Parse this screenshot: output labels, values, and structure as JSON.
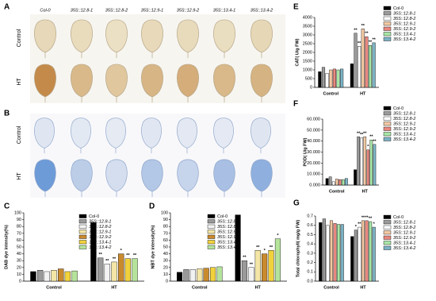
{
  "panels": {
    "A": {
      "label": "A",
      "columns": [
        "Col-0",
        "35S::12.8-1",
        "35S::12.8-2",
        "35S::12.9-1",
        "35S::12.9-2",
        "35S::13.4-1",
        "35S::13.4-2"
      ],
      "rows": [
        "Control",
        "HT"
      ]
    },
    "B": {
      "label": "B",
      "rows": [
        "Control",
        "HT"
      ]
    }
  },
  "chart_data": [
    {
      "type": "bar",
      "label": "C",
      "ylabel": "DAB dye intensity(%)",
      "categories": [
        "Control",
        "HT"
      ],
      "legend": "upper right",
      "ylim": [
        0,
        100
      ],
      "yticks": [
        0,
        10,
        20,
        30,
        40,
        50,
        60,
        70,
        80,
        90,
        100
      ],
      "series": [
        {
          "name": "Col-0",
          "color": "#000000",
          "values": [
            14,
            86
          ],
          "marks": [
            null,
            null
          ]
        },
        {
          "name": "35S::12.8-1",
          "color": "#9a9a9a",
          "values": [
            16,
            34
          ],
          "marks": [
            null,
            "**"
          ]
        },
        {
          "name": "35S::12.8-2",
          "color": "#f2f2f2",
          "values": [
            14,
            25
          ],
          "marks": [
            null,
            "**"
          ]
        },
        {
          "name": "35S::12.9-1",
          "color": "#f3e6a6",
          "values": [
            16,
            28
          ],
          "marks": [
            null,
            "**"
          ]
        },
        {
          "name": "35S::12.9-2",
          "color": "#c98a2e",
          "values": [
            18,
            40
          ],
          "marks": [
            null,
            "*"
          ]
        },
        {
          "name": "35S::13.4-1",
          "color": "#f2d23c",
          "values": [
            14,
            33
          ],
          "marks": [
            null,
            "**"
          ]
        },
        {
          "name": "35S::13.4-2",
          "color": "#b5e39b",
          "values": [
            15,
            33
          ],
          "marks": [
            null,
            "**"
          ]
        }
      ]
    },
    {
      "type": "bar",
      "label": "D",
      "ylabel": "NBT dye intensity(%)",
      "categories": [
        "Control",
        "HT"
      ],
      "legend": "upper right",
      "ylim": [
        0,
        100
      ],
      "yticks": [
        0,
        10,
        20,
        30,
        40,
        50,
        60,
        70,
        80,
        90,
        100
      ],
      "series": [
        {
          "name": "Col-0",
          "color": "#000000",
          "values": [
            13,
            97
          ],
          "marks": [
            null,
            null
          ]
        },
        {
          "name": "35S::12.8-1",
          "color": "#9a9a9a",
          "values": [
            17,
            30
          ],
          "marks": [
            null,
            "**"
          ]
        },
        {
          "name": "35S::12.8-2",
          "color": "#f2f2f2",
          "values": [
            17,
            20
          ],
          "marks": [
            null,
            "**"
          ]
        },
        {
          "name": "35S::12.9-1",
          "color": "#f3e6a6",
          "values": [
            18,
            45
          ],
          "marks": [
            null,
            "**"
          ]
        },
        {
          "name": "35S::12.9-2",
          "color": "#c98a2e",
          "values": [
            19,
            40
          ],
          "marks": [
            null,
            "*"
          ]
        },
        {
          "name": "35S::13.4-1",
          "color": "#f2d23c",
          "values": [
            20,
            45
          ],
          "marks": [
            null,
            "**"
          ]
        },
        {
          "name": "35S::13.4-2",
          "color": "#b5e39b",
          "values": [
            21,
            62
          ],
          "marks": [
            null,
            "*"
          ]
        }
      ]
    },
    {
      "type": "bar",
      "label": "E",
      "ylabel": "CAT( U/g FW)",
      "categories": [
        "Control",
        "HT"
      ],
      "legend": "outside right",
      "ylim": [
        0,
        4000
      ],
      "yticks": [
        0,
        500,
        1000,
        1500,
        2000,
        2500,
        3000,
        3500,
        4000
      ],
      "series": [
        {
          "name": "Col-0",
          "color": "#000000",
          "values": [
            900,
            1350
          ],
          "marks": [
            null,
            null
          ]
        },
        {
          "name": "35S::12.8-1",
          "color": "#9a9a9a",
          "values": [
            1150,
            3100
          ],
          "marks": [
            null,
            "**"
          ]
        },
        {
          "name": "35S::12.8-2",
          "color": "#ffffff",
          "values": [
            800,
            2350
          ],
          "marks": [
            null,
            "**"
          ]
        },
        {
          "name": "35S::12.9-1",
          "color": "#f3c9a3",
          "values": [
            1000,
            3350
          ],
          "marks": [
            null,
            "**"
          ]
        },
        {
          "name": "35S::12.9-2",
          "color": "#e8877e",
          "values": [
            1050,
            2900
          ],
          "marks": [
            null,
            "**"
          ]
        },
        {
          "name": "35S::13.4-1",
          "color": "#a8e6a6",
          "values": [
            1000,
            2400
          ],
          "marks": [
            null,
            "**"
          ]
        },
        {
          "name": "35S::13.4-2",
          "color": "#7cb3c5",
          "values": [
            1050,
            2550
          ],
          "marks": [
            null,
            "**"
          ]
        }
      ]
    },
    {
      "type": "bar",
      "label": "F",
      "ylabel": "POD( U/g FW)",
      "categories": [
        "Control",
        "HT"
      ],
      "legend": "outside right",
      "ylim": [
        0,
        60000
      ],
      "yticks": [
        {
          "value": 0,
          "label": "0.000"
        },
        {
          "value": 10000,
          "label": "10.000"
        },
        {
          "value": 20000,
          "label": "20.000"
        },
        {
          "value": 30000,
          "label": "30.000"
        },
        {
          "value": 40000,
          "label": "40.000"
        },
        {
          "value": 50000,
          "label": "50.000"
        },
        {
          "value": 60000,
          "label": "60.000"
        }
      ],
      "series": [
        {
          "name": "Col-0",
          "color": "#000000",
          "values": [
            6000,
            14000
          ],
          "marks": [
            null,
            null
          ]
        },
        {
          "name": "35S::12.8-1",
          "color": "#9a9a9a",
          "values": [
            7500,
            44000
          ],
          "marks": [
            null,
            "**"
          ]
        },
        {
          "name": "35S::12.8-2",
          "color": "#ffffff",
          "values": [
            3000,
            43000
          ],
          "marks": [
            null,
            "**"
          ]
        },
        {
          "name": "35S::12.9-1",
          "color": "#f3c9a3",
          "values": [
            5500,
            44000
          ],
          "marks": [
            null,
            "**"
          ]
        },
        {
          "name": "35S::12.9-2",
          "color": "#e8877e",
          "values": [
            5000,
            32000
          ],
          "marks": [
            null,
            "*"
          ]
        },
        {
          "name": "35S::13.4-1",
          "color": "#a8e6a6",
          "values": [
            5000,
            41000
          ],
          "marks": [
            null,
            "**"
          ]
        },
        {
          "name": "35S::13.4-2",
          "color": "#7cb3c5",
          "values": [
            6000,
            37000
          ],
          "marks": [
            null,
            "**"
          ]
        }
      ]
    },
    {
      "type": "bar",
      "label": "G",
      "ylabel": "Total chlorophyll( mg/g FW)",
      "categories": [
        "Control",
        "HT"
      ],
      "legend": "outside right",
      "ylim": [
        0,
        0.7
      ],
      "yticks": [
        {
          "value": 0,
          "label": "0.0"
        },
        0.1,
        0.2,
        0.3,
        0.4,
        0.5,
        0.6,
        0.7
      ],
      "series": [
        {
          "name": "Col-0",
          "color": "#000000",
          "values": [
            0.63,
            0.48
          ],
          "marks": [
            null,
            null
          ]
        },
        {
          "name": "35S::12.8-1",
          "color": "#9a9a9a",
          "values": [
            0.67,
            0.55
          ],
          "marks": [
            null,
            "*"
          ]
        },
        {
          "name": "35S::12.8-2",
          "color": "#ffffff",
          "values": [
            0.6,
            0.58
          ],
          "marks": [
            null,
            "**"
          ]
        },
        {
          "name": "35S::12.9-1",
          "color": "#f3c9a3",
          "values": [
            0.65,
            0.65
          ],
          "marks": [
            null,
            "**"
          ]
        },
        {
          "name": "35S::12.9-2",
          "color": "#e8877e",
          "values": [
            0.62,
            0.65
          ],
          "marks": [
            null,
            "**"
          ]
        },
        {
          "name": "35S::13.4-1",
          "color": "#a8e6a6",
          "values": [
            0.61,
            0.64
          ],
          "marks": [
            null,
            "**"
          ]
        },
        {
          "name": "35S::13.4-2",
          "color": "#7cb3c5",
          "values": [
            0.61,
            0.58
          ],
          "marks": [
            null,
            "*"
          ]
        }
      ]
    }
  ]
}
